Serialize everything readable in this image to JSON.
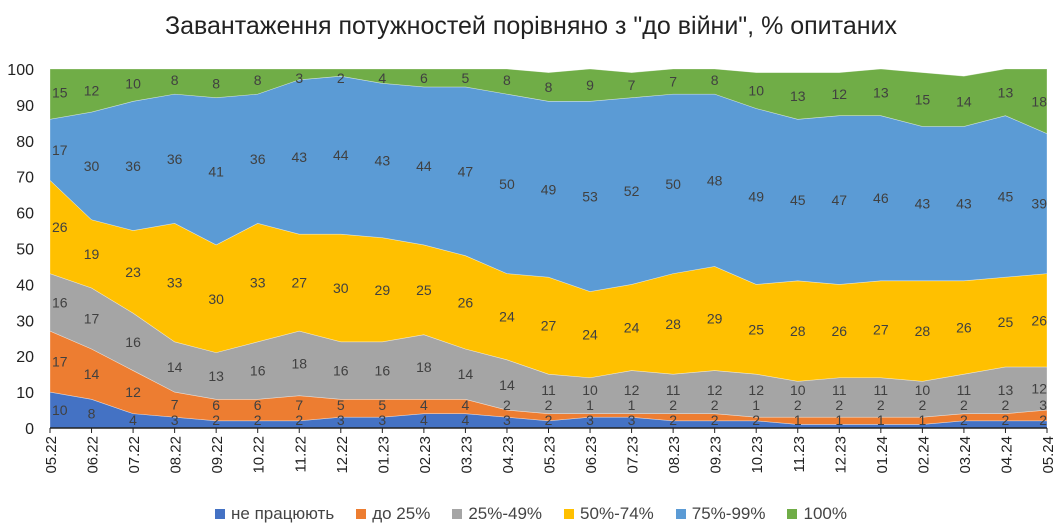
{
  "chart_data": {
    "type": "area",
    "stacked": true,
    "title": "Завантаження потужностей порівняно з \"до війни\", % опитаних",
    "xlabel": "",
    "ylabel": "",
    "ylim": [
      0,
      100
    ],
    "yticks": [
      0,
      10,
      20,
      30,
      40,
      50,
      60,
      70,
      80,
      90,
      100
    ],
    "grid": false,
    "legend_position": "bottom",
    "categories": [
      "05.22",
      "06.22",
      "07.22",
      "08.22",
      "09.22",
      "10.22",
      "11.22",
      "12.22",
      "01.23",
      "02.23",
      "03.23",
      "04.23",
      "05.23",
      "06.23",
      "07.23",
      "08.23",
      "09.23",
      "10.23",
      "11.23",
      "12.23",
      "01.24",
      "02.24",
      "03.24",
      "04.24",
      "05.24"
    ],
    "series": [
      {
        "name": "не працюють",
        "color": "#4472C4",
        "values": [
          10,
          8,
          4,
          3,
          2,
          2,
          2,
          3,
          3,
          4,
          4,
          3,
          2,
          3,
          3,
          2,
          2,
          2,
          1,
          1,
          1,
          1,
          2,
          2,
          2
        ]
      },
      {
        "name": "до 25%",
        "color": "#ED7D31",
        "values": [
          17,
          14,
          12,
          7,
          6,
          6,
          7,
          5,
          5,
          4,
          4,
          2,
          2,
          1,
          1,
          2,
          2,
          1,
          2,
          2,
          2,
          2,
          2,
          2,
          3
        ]
      },
      {
        "name": "25%-49%",
        "color": "#A5A5A5",
        "values": [
          16,
          17,
          16,
          14,
          13,
          16,
          18,
          16,
          16,
          18,
          14,
          14,
          11,
          10,
          12,
          11,
          12,
          12,
          10,
          11,
          11,
          10,
          11,
          13,
          12
        ]
      },
      {
        "name": "50%-74%",
        "color": "#FFC000",
        "values": [
          26,
          19,
          23,
          33,
          30,
          33,
          27,
          30,
          29,
          25,
          26,
          24,
          27,
          24,
          24,
          28,
          29,
          25,
          28,
          26,
          27,
          28,
          26,
          25,
          26
        ]
      },
      {
        "name": "75%-99%",
        "color": "#5B9BD5",
        "values": [
          17,
          30,
          36,
          36,
          41,
          36,
          43,
          44,
          43,
          44,
          47,
          50,
          49,
          53,
          52,
          50,
          48,
          49,
          45,
          47,
          46,
          43,
          43,
          45,
          39
        ]
      },
      {
        "name": "100%",
        "color": "#70AD47",
        "values": [
          15,
          12,
          10,
          8,
          8,
          8,
          3,
          2,
          4,
          6,
          5,
          8,
          8,
          9,
          7,
          7,
          8,
          10,
          13,
          12,
          13,
          15,
          14,
          13,
          18
        ]
      }
    ]
  }
}
